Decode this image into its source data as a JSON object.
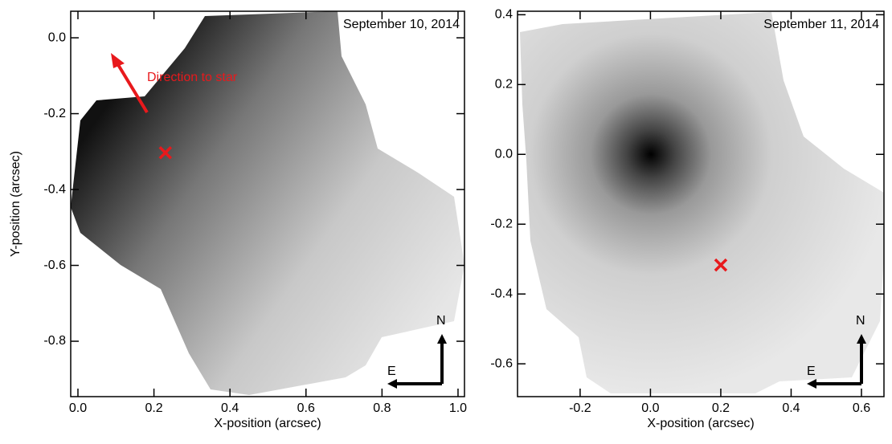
{
  "chart_data": [
    {
      "type": "scatter",
      "title": "September 10, 2014",
      "annotation": "Direction to star",
      "x": [
        0.23
      ],
      "y": [
        -0.303
      ],
      "color": "#e8191c",
      "xlabel": "X-position (arcsec)",
      "ylabel": "Y-position (arcsec)",
      "xlim": [
        -0.019,
        1.017
      ],
      "ylim": [
        -0.946,
        0.07
      ],
      "xticks": [
        {
          "value": 0,
          "label": "0.0"
        },
        0.2,
        0.4,
        0.6,
        0.8,
        {
          "value": 1,
          "label": "1.0"
        }
      ],
      "yticks": [
        -0.8,
        -0.6,
        -0.4,
        -0.2,
        {
          "value": 0,
          "label": "0.0"
        }
      ],
      "compass": {
        "north": "N",
        "east": "E"
      }
    },
    {
      "type": "scatter",
      "title": "September 11, 2014",
      "x": [
        0.2
      ],
      "y": [
        -0.317
      ],
      "color": "#e8191c",
      "xlabel": "X-position (arcsec)",
      "xlim": [
        -0.378,
        0.664
      ],
      "ylim": [
        -0.694,
        0.41
      ],
      "xticks": [
        -0.2,
        {
          "value": 0,
          "label": "0.0"
        },
        0.2,
        0.4,
        0.6
      ],
      "yticks": [
        -0.6,
        -0.4,
        -0.2,
        {
          "value": 0,
          "label": "0.0"
        },
        0.2,
        0.4
      ],
      "compass": {
        "north": "N",
        "east": "E"
      }
    }
  ]
}
